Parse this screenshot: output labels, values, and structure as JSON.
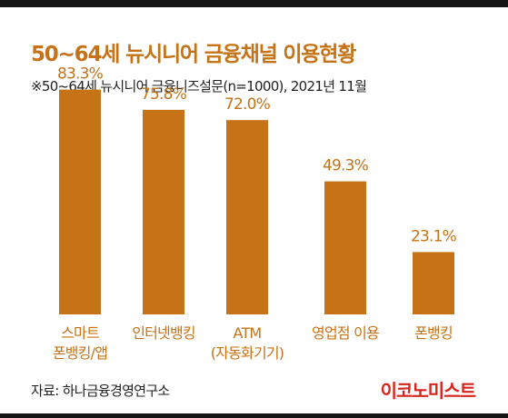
{
  "title": "50~64세 뉴시니어 금융채널 이용현황",
  "subtitle": "※50~64세 뉴시니어 금융니즈설문(n=1000), 2021년 11월",
  "source": "자료: 하나금융경영연구소",
  "brand": "이코노미스트",
  "colors": {
    "bar": "#c57316",
    "accent": "#c57316",
    "brand": "#d6251d"
  },
  "chart_data": {
    "type": "bar",
    "title": "50~64세 뉴시니어 금융채널 이용현황",
    "xlabel": "",
    "ylabel": "",
    "unit": "%",
    "grid": false,
    "ylim": [
      0,
      100
    ],
    "categories": [
      [
        "스마트",
        "폰뱅킹/앱"
      ],
      [
        "인터넷뱅킹"
      ],
      [
        "ATM",
        "(자동화기기)"
      ],
      [
        "영업점 이용"
      ],
      [
        "폰뱅킹"
      ]
    ],
    "values": [
      83.3,
      75.8,
      72.0,
      49.3,
      23.1
    ],
    "value_labels": [
      "83.3%",
      "75.8%",
      "72.0%",
      "49.3%",
      "23.1%"
    ]
  }
}
